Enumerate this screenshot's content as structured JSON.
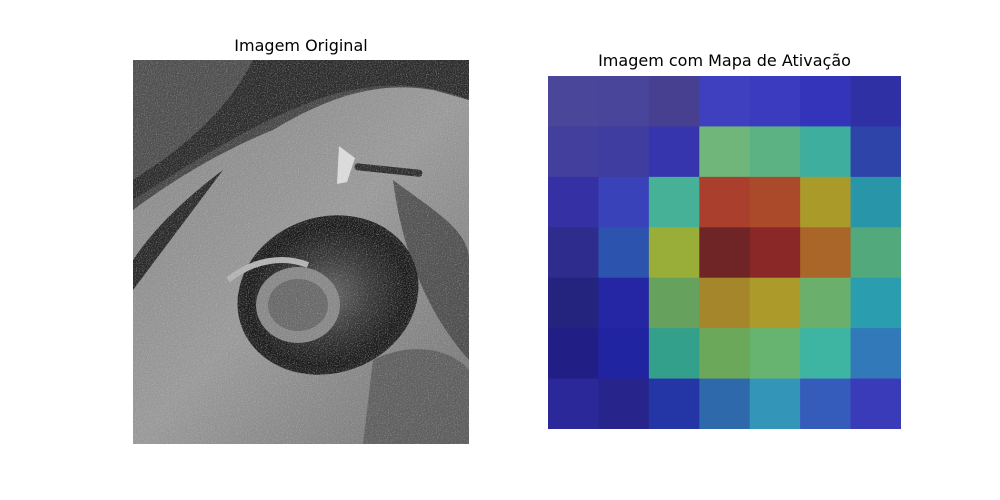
{
  "figure": {
    "left_panel": {
      "title": "Imagem Original",
      "content": "grayscale photograph of a rock pothole with a geologist hammer"
    },
    "right_panel": {
      "title": "Imagem com Mapa de Ativação",
      "grid_rows": 7,
      "grid_cols": 7,
      "activation_colors": [
        [
          "#4a469a",
          "#48459a",
          "#473f8f",
          "#3f40bf",
          "#3b3bbf",
          "#3434bb",
          "#2f30a3"
        ],
        [
          "#433f9c",
          "#3f3d9f",
          "#3735ae",
          "#70b67b",
          "#5db283",
          "#3eae9f",
          "#2e44a8"
        ],
        [
          "#3531a4",
          "#3942b8",
          "#46b196",
          "#ab3f2d",
          "#aa4a2a",
          "#a99a2a",
          "#2896a8"
        ],
        [
          "#2e2d8e",
          "#2c53ae",
          "#99ae39",
          "#6f2525",
          "#8a2727",
          "#a96628",
          "#51a97c"
        ],
        [
          "#24247f",
          "#2426a3",
          "#66a25d",
          "#a5862a",
          "#ac9a2a",
          "#6aaf6c",
          "#2a9eae"
        ],
        [
          "#211f86",
          "#2024a0",
          "#33a08c",
          "#6ba85a",
          "#66b470",
          "#3eb5a3",
          "#3279b9"
        ],
        [
          "#2b2899",
          "#27258c",
          "#2436a6",
          "#2d69ab",
          "#3395b8",
          "#355bbb",
          "#3a3bb8"
        ]
      ]
    }
  }
}
